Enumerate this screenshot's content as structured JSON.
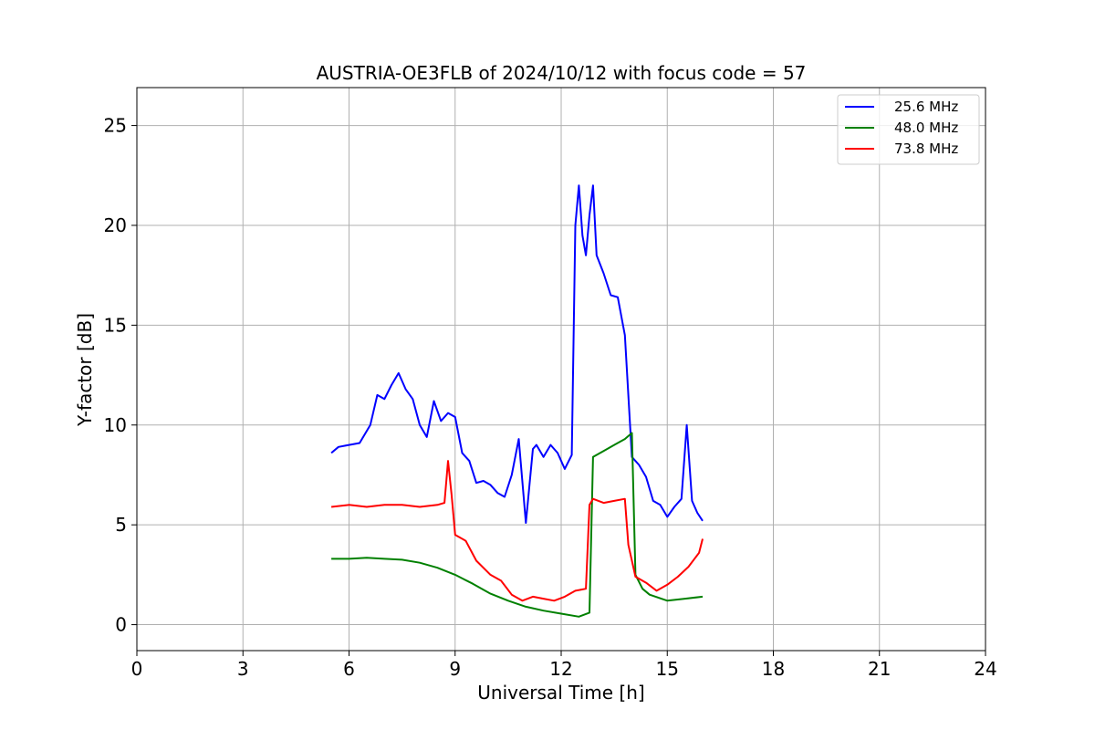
{
  "chart_data": {
    "type": "line",
    "title": "AUSTRIA-OE3FLB of 2024/10/12 with focus code = 57",
    "xlabel": "Universal Time [h]",
    "ylabel": "Y-factor [dB]",
    "xlim": [
      0,
      24
    ],
    "ylim": [
      -1.3,
      26.9
    ],
    "xticks": [
      0,
      3,
      6,
      9,
      12,
      15,
      18,
      21,
      24
    ],
    "xtick_labels": [
      "0",
      "3",
      "6",
      "9",
      "12",
      "15",
      "18",
      "21",
      "24"
    ],
    "yticks": [
      0,
      5,
      10,
      15,
      20,
      25
    ],
    "ytick_labels": [
      "0",
      "5",
      "10",
      "15",
      "20",
      "25"
    ],
    "grid": true,
    "legend_position": "top-right",
    "series": [
      {
        "name": "25.6 MHz",
        "color": "#0000ff",
        "x": [
          5.5,
          5.7,
          6.0,
          6.3,
          6.6,
          6.8,
          7.0,
          7.2,
          7.4,
          7.6,
          7.8,
          8.0,
          8.2,
          8.4,
          8.6,
          8.8,
          9.0,
          9.2,
          9.4,
          9.6,
          9.8,
          10.0,
          10.2,
          10.4,
          10.6,
          10.8,
          11.0,
          11.2,
          11.3,
          11.5,
          11.7,
          11.9,
          12.1,
          12.3,
          12.4,
          12.5,
          12.6,
          12.7,
          12.8,
          12.9,
          13.0,
          13.2,
          13.4,
          13.6,
          13.8,
          14.0,
          14.2,
          14.4,
          14.6,
          14.8,
          15.0,
          15.2,
          15.4,
          15.55,
          15.7,
          15.85,
          16.0
        ],
        "y": [
          8.6,
          8.9,
          9.0,
          9.1,
          10.0,
          11.5,
          11.3,
          12.0,
          12.6,
          11.8,
          11.3,
          10.0,
          9.4,
          11.2,
          10.2,
          10.6,
          10.4,
          8.6,
          8.2,
          7.1,
          7.2,
          7.0,
          6.6,
          6.4,
          7.5,
          9.3,
          5.1,
          8.8,
          9.0,
          8.4,
          9.0,
          8.6,
          7.8,
          8.5,
          20.0,
          22.0,
          19.5,
          18.5,
          20.5,
          22.0,
          18.5,
          17.6,
          16.5,
          16.4,
          14.5,
          8.4,
          8.0,
          7.4,
          6.2,
          6.0,
          5.4,
          5.9,
          6.3,
          10.0,
          6.2,
          5.6,
          5.2
        ]
      },
      {
        "name": "48.0 MHz",
        "color": "#008000",
        "x": [
          5.5,
          6.0,
          6.5,
          7.0,
          7.5,
          8.0,
          8.5,
          9.0,
          9.5,
          10.0,
          10.5,
          11.0,
          11.5,
          12.0,
          12.5,
          12.8,
          12.9,
          13.2,
          13.5,
          13.8,
          14.0,
          14.1,
          14.3,
          14.5,
          15.0,
          15.5,
          16.0
        ],
        "y": [
          3.3,
          3.3,
          3.35,
          3.3,
          3.25,
          3.1,
          2.85,
          2.5,
          2.05,
          1.55,
          1.2,
          0.9,
          0.7,
          0.55,
          0.4,
          0.6,
          8.4,
          8.7,
          9.0,
          9.3,
          9.6,
          2.5,
          1.8,
          1.5,
          1.2,
          1.3,
          1.4
        ]
      },
      {
        "name": "73.8 MHz",
        "color": "#ff0000",
        "x": [
          5.5,
          6.0,
          6.5,
          7.0,
          7.5,
          8.0,
          8.5,
          8.7,
          8.8,
          8.9,
          9.0,
          9.3,
          9.6,
          10.0,
          10.3,
          10.6,
          10.9,
          11.2,
          11.5,
          11.8,
          12.1,
          12.4,
          12.7,
          12.8,
          12.9,
          13.2,
          13.5,
          13.8,
          13.9,
          14.1,
          14.4,
          14.7,
          15.0,
          15.3,
          15.6,
          15.9,
          16.0
        ],
        "y": [
          5.9,
          6.0,
          5.9,
          6.0,
          6.0,
          5.9,
          6.0,
          6.1,
          8.2,
          6.5,
          4.5,
          4.2,
          3.2,
          2.5,
          2.2,
          1.5,
          1.2,
          1.4,
          1.3,
          1.2,
          1.4,
          1.7,
          1.8,
          6.0,
          6.3,
          6.1,
          6.2,
          6.3,
          4.0,
          2.4,
          2.1,
          1.7,
          2.0,
          2.4,
          2.9,
          3.6,
          4.3
        ]
      }
    ]
  }
}
